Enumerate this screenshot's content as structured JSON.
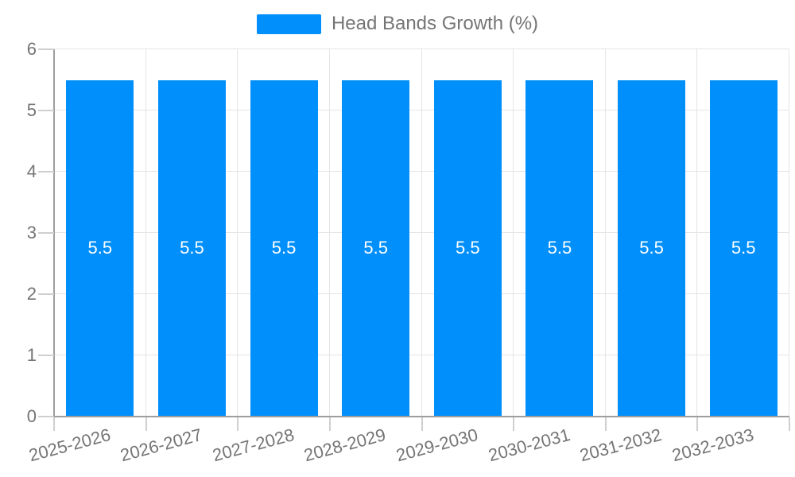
{
  "legend": {
    "label": "Head Bands Growth (%)"
  },
  "colors": {
    "bar": "#008FFB",
    "value_label": "#ffffff",
    "axis_text": "#757575",
    "axis_line": "#9e9e9e",
    "gridline": "#e5e5e5",
    "tick": "#cfcfcf",
    "background": "#ffffff"
  },
  "chart_data": {
    "type": "bar",
    "title": "Head Bands Growth (%)",
    "series": [
      {
        "name": "Head Bands Growth (%)",
        "values": [
          5.5,
          5.5,
          5.5,
          5.5,
          5.5,
          5.5,
          5.5,
          5.5
        ]
      }
    ],
    "categories": [
      "2025-2026",
      "2026-2027",
      "2027-2028",
      "2028-2029",
      "2029-2030",
      "2030-2031",
      "2031-2032",
      "2032-2033"
    ],
    "value_labels": [
      "5.5",
      "5.5",
      "5.5",
      "5.5",
      "5.5",
      "5.5",
      "5.5",
      "5.5"
    ],
    "xlabel": "",
    "ylabel": "",
    "ylim": [
      0,
      6
    ],
    "yticks": [
      0,
      1,
      2,
      3,
      4,
      5,
      6
    ],
    "grid": true,
    "legend_position": "top",
    "bar_labels_inside": true,
    "x_tick_label_rotation_deg": -15
  }
}
